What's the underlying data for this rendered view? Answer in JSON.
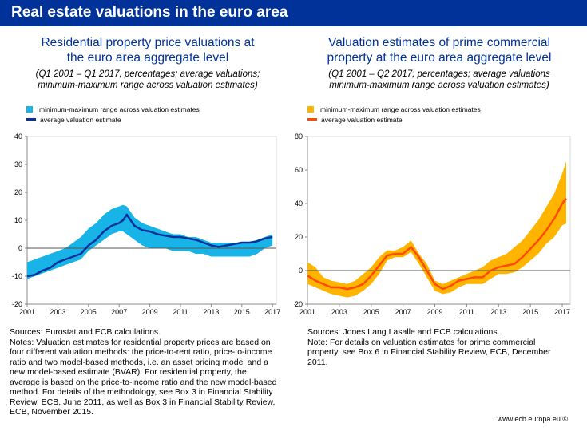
{
  "header": {
    "title": "Real estate valuations in the euro area"
  },
  "left": {
    "title_line1": "Residential property price valuations at",
    "title_line2": "the euro area aggregate level",
    "subtitle_line1": "(Q1 2001 – Q1 2017, percentages; average valuations;",
    "subtitle_line2": "minimum-maximum range across valuation estimates)",
    "legend_range": "minimum-maximum range across valuation estimates",
    "legend_avg": "average valuation estimate",
    "notes": [
      "Sources: Eurostat and ECB calculations.",
      "Notes: Valuation estimates for residential property prices are based on",
      "four different valuation methods: the price-to-rent ratio, price-to-income",
      "ratio and two model-based methods, i.e. an asset pricing model and a",
      "new model-based estimate (BVAR). For residential property, the",
      "average is based on the price-to-income ratio and the new model-based",
      "method. For details of the methodology, see Box 3 in Financial Stability",
      "Review, ECB, June 2011, as well as Box 3 in Financial Stability Review,",
      "ECB, November 2015."
    ]
  },
  "right": {
    "title_line1": "Valuation estimates of prime commercial",
    "title_line2": "property at the euro area aggregate level",
    "subtitle_line1": "(Q1 2001 – Q2 2017; percentages; average valuations",
    "subtitle_line2": "minimum-maximum range across valuation estimates)",
    "legend_range": "minimum-maximum range across valuation estimates",
    "legend_avg": "average valuation estimate",
    "notes": [
      "Sources: Jones Lang Lasalle and ECB calculations.",
      "Note: For details on valuation estimates for prime commercial",
      "property, see Box 6 in Financial Stability Review, ECB, December",
      "2011."
    ]
  },
  "footer": {
    "url": "www.ecb.europa.eu ©"
  },
  "colors": {
    "brand": "#003299",
    "left_range": "#18b4e8",
    "left_avg": "#003299",
    "right_range": "#ffb400",
    "right_avg": "#ff4b00"
  },
  "chart_data": [
    {
      "type": "area",
      "title": "Residential property price valuations at the euro area aggregate level",
      "xlim": [
        2001,
        2017.25
      ],
      "ylim": [
        -20,
        40
      ],
      "x_ticks": [
        "2001",
        "2003",
        "2005",
        "2007",
        "2009",
        "2011",
        "2013",
        "2015",
        "2017"
      ],
      "y_ticks": [
        "40",
        "30",
        "20",
        "10",
        "0",
        "-10",
        "-20"
      ],
      "x": [
        2001,
        2001.5,
        2002,
        2002.5,
        2003,
        2003.5,
        2004,
        2004.5,
        2005,
        2005.5,
        2006,
        2006.5,
        2007,
        2007.25,
        2007.5,
        2007.75,
        2008,
        2008.5,
        2009,
        2009.5,
        2010,
        2010.5,
        2011,
        2011.5,
        2012,
        2012.5,
        2013,
        2013.5,
        2014,
        2014.5,
        2015,
        2015.5,
        2016,
        2016.5,
        2017
      ],
      "series": [
        {
          "name": "minimum-maximum range across valuation estimates",
          "role": "range",
          "low": [
            -11,
            -10,
            -9,
            -8,
            -7,
            -6,
            -5,
            -4,
            -1,
            1,
            3,
            5,
            6,
            6,
            5,
            4,
            3,
            1,
            0,
            0,
            0,
            -1,
            -1,
            -1,
            -2,
            -2,
            -3,
            -3,
            -3,
            -3,
            -3,
            -3,
            -2,
            0,
            1
          ],
          "high": [
            -5,
            -4,
            -3,
            -2,
            -1,
            0,
            2,
            4,
            7,
            9,
            12,
            14,
            15,
            15.5,
            15,
            13,
            11,
            9,
            8,
            7,
            6,
            5,
            5,
            4,
            4,
            3,
            2,
            2,
            2,
            2,
            2,
            2,
            3,
            4,
            5
          ]
        },
        {
          "name": "average valuation estimate",
          "role": "avg",
          "values": [
            -10,
            -9.5,
            -8,
            -7,
            -5,
            -4,
            -3,
            -2,
            1,
            3,
            6,
            8,
            9,
            10,
            12,
            10,
            8,
            6.5,
            6,
            5,
            4.5,
            4,
            4,
            3.5,
            3,
            2,
            1,
            0.5,
            1,
            1.5,
            2,
            2,
            2.5,
            3.5,
            4
          ]
        }
      ]
    },
    {
      "type": "area",
      "title": "Valuation estimates of prime commercial property at the euro area aggregate level",
      "xlim": [
        2001,
        2017.5
      ],
      "ylim": [
        -20,
        80
      ],
      "x_ticks": [
        "2001",
        "2003",
        "2005",
        "2007",
        "2009",
        "2011",
        "2013",
        "2015",
        "2017"
      ],
      "y_ticks": [
        "80",
        "60",
        "40",
        "20",
        "0",
        "-20"
      ],
      "x": [
        2001,
        2001.5,
        2002,
        2002.5,
        2003,
        2003.5,
        2004,
        2004.5,
        2005,
        2005.5,
        2006,
        2006.5,
        2007,
        2007.5,
        2008,
        2008.5,
        2009,
        2009.5,
        2010,
        2010.5,
        2011,
        2011.5,
        2012,
        2012.5,
        2013,
        2013.5,
        2014,
        2014.5,
        2015,
        2015.5,
        2016,
        2016.5,
        2017,
        2017.25
      ],
      "series": [
        {
          "name": "minimum-maximum range across valuation estimates",
          "role": "range",
          "low": [
            -8,
            -10,
            -12,
            -14,
            -15,
            -16,
            -15,
            -12,
            -8,
            -2,
            6,
            8,
            8,
            11,
            4,
            -4,
            -12,
            -14,
            -13,
            -10,
            -8,
            -8,
            -8,
            -5,
            -2,
            -2,
            -1,
            2,
            6,
            10,
            16,
            20,
            27,
            28
          ],
          "high": [
            5,
            2,
            -4,
            -6,
            -7,
            -8,
            -6,
            -2,
            2,
            8,
            12,
            12,
            14,
            18,
            10,
            4,
            -6,
            -8,
            -6,
            -4,
            -2,
            0,
            2,
            6,
            8,
            10,
            14,
            18,
            24,
            30,
            38,
            46,
            58,
            65
          ]
        },
        {
          "name": "average valuation estimate",
          "role": "avg",
          "values": [
            -3,
            -6,
            -8,
            -10,
            -10,
            -11,
            -10,
            -8,
            -3,
            3,
            9,
            10,
            10,
            14,
            8,
            0,
            -8,
            -11,
            -9,
            -6,
            -5,
            -4,
            -4,
            0,
            2,
            3,
            4,
            8,
            13,
            18,
            24,
            31,
            40,
            43
          ]
        }
      ]
    }
  ]
}
